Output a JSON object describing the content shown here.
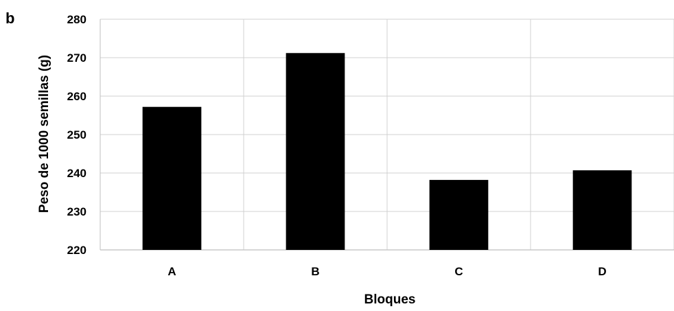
{
  "panel_label": "b",
  "chart_data": {
    "type": "bar",
    "categories": [
      "A",
      "B",
      "C",
      "D"
    ],
    "values": [
      257.2,
      271.2,
      238.2,
      240.7
    ],
    "xlabel": "Bloques",
    "ylabel": "Peso de 1000 semillas (g)",
    "ylim": [
      220,
      280
    ],
    "yticks": [
      220,
      230,
      240,
      250,
      260,
      270,
      280
    ],
    "grid": true,
    "bar_color": "#000000",
    "grid_color": "#d0d0d0"
  }
}
